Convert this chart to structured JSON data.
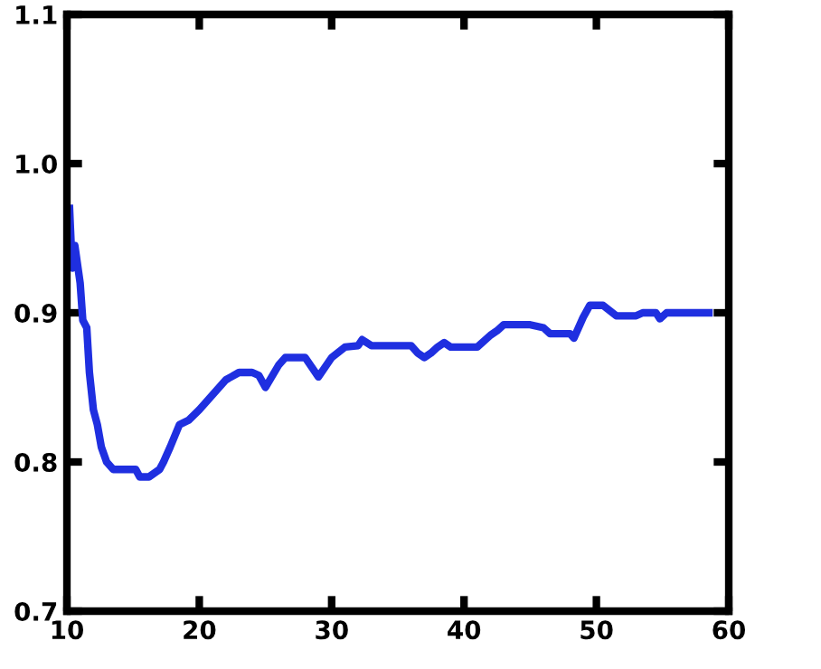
{
  "chart_data": {
    "type": "line",
    "x": [
      10.2,
      10.4,
      10.6,
      11.0,
      11.2,
      11.5,
      11.7,
      12.0,
      12.3,
      12.6,
      13.0,
      13.5,
      15.2,
      15.5,
      16.2,
      17.0,
      17.3,
      17.8,
      18.5,
      19.2,
      20,
      21,
      22,
      23,
      24,
      24.5,
      25,
      26,
      26.5,
      28,
      29,
      30,
      31,
      32,
      32.3,
      33,
      36,
      36.5,
      37,
      37.5,
      38,
      38.5,
      39,
      40,
      41,
      42,
      42.5,
      43,
      45,
      46,
      46.5,
      48,
      48.3,
      49,
      49.5,
      50.5,
      51.5,
      53,
      53.5,
      54.5,
      54.8,
      55.3,
      58.5
    ],
    "series": [
      {
        "color": "#1f2fe0",
        "values": [
          0.97,
          0.93,
          0.945,
          0.92,
          0.895,
          0.89,
          0.86,
          0.835,
          0.825,
          0.81,
          0.8,
          0.795,
          0.795,
          0.79,
          0.79,
          0.795,
          0.8,
          0.81,
          0.825,
          0.828,
          0.835,
          0.845,
          0.855,
          0.86,
          0.86,
          0.858,
          0.85,
          0.865,
          0.87,
          0.87,
          0.857,
          0.87,
          0.877,
          0.878,
          0.882,
          0.878,
          0.878,
          0.873,
          0.87,
          0.873,
          0.877,
          0.88,
          0.877,
          0.877,
          0.877,
          0.885,
          0.888,
          0.892,
          0.892,
          0.89,
          0.886,
          0.886,
          0.883,
          0.897,
          0.905,
          0.905,
          0.898,
          0.898,
          0.9,
          0.9,
          0.896,
          0.9,
          0.9
        ]
      }
    ],
    "xlim": [
      10,
      60
    ],
    "ylim": [
      0.7,
      1.1
    ],
    "xticks": [
      {
        "value": 10,
        "label": "10"
      },
      {
        "value": 20,
        "label": "20"
      },
      {
        "value": 30,
        "label": "30"
      },
      {
        "value": 40,
        "label": "40"
      },
      {
        "value": 50,
        "label": "50"
      },
      {
        "value": 60,
        "label": "60"
      }
    ],
    "yticks": [
      {
        "value": 0.7,
        "label": "0.7"
      },
      {
        "value": 0.8,
        "label": "0.8"
      },
      {
        "value": 0.9,
        "label": "0.9"
      },
      {
        "value": 1.0,
        "label": "1.0"
      },
      {
        "value": 1.1,
        "label": "1.1"
      }
    ],
    "grid": false,
    "legend": false,
    "marker": "none",
    "line_style": "solid"
  }
}
